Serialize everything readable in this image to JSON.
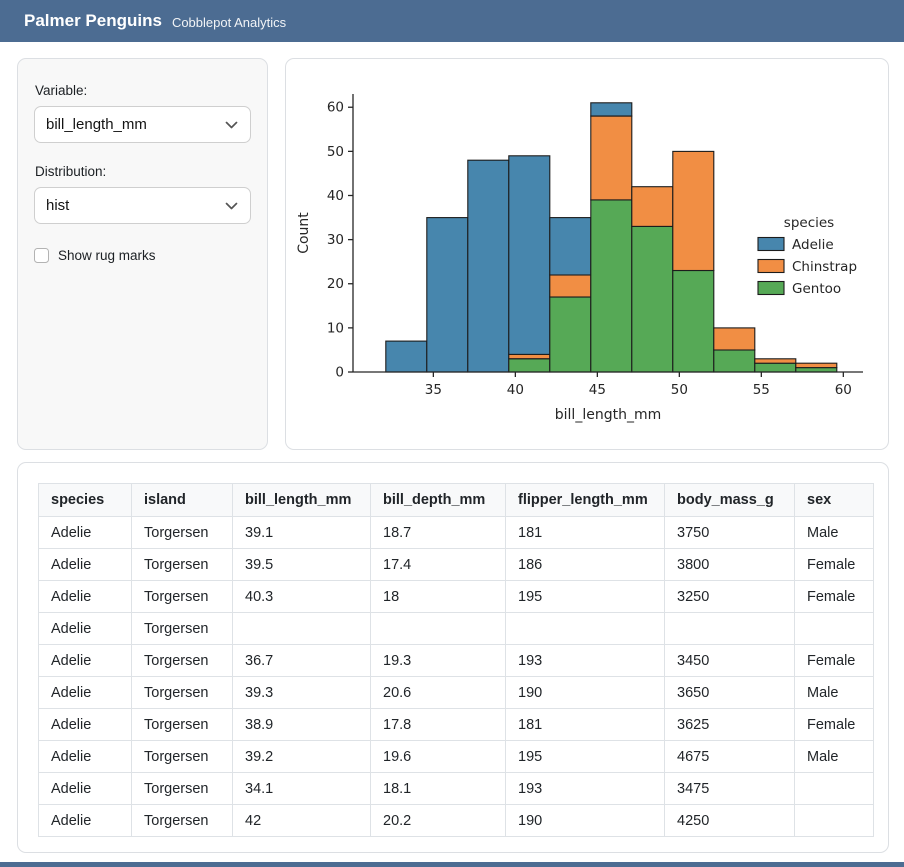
{
  "header": {
    "title": "Palmer Penguins",
    "subtitle": "Cobblepot Analytics"
  },
  "colors": {
    "navbar": "#4c6c92",
    "adelie": "#4786ad",
    "chinstrap": "#f18e44",
    "gentoo": "#56a956",
    "bar_edge": "#1c1c1c",
    "axis": "#262626",
    "table_header_bg": "#f8f9fa",
    "table_border": "#dee2e6",
    "sidebar_bg": "#f8f8f8"
  },
  "sidebar": {
    "variable_label": "Variable:",
    "variable_value": "bill_length_mm",
    "distribution_label": "Distribution:",
    "distribution_value": "hist",
    "rug_label": "Show rug marks",
    "rug_checked": false
  },
  "chart_data": {
    "type": "bar",
    "subtype": "stacked-histogram",
    "title": "",
    "xlabel": "bill_length_mm",
    "ylabel": "Count",
    "bin_edges": [
      32.1,
      34.6,
      37.1,
      39.6,
      42.1,
      44.6,
      47.1,
      49.6,
      52.1,
      54.6,
      57.1,
      59.6
    ],
    "series": [
      {
        "name": "Adelie",
        "color": "#4786ad",
        "values": [
          7,
          35,
          48,
          45,
          13,
          3,
          0,
          0,
          0,
          0,
          0
        ]
      },
      {
        "name": "Chinstrap",
        "color": "#f18e44",
        "values": [
          0,
          0,
          0,
          1,
          5,
          19,
          9,
          27,
          5,
          1,
          1
        ]
      },
      {
        "name": "Gentoo",
        "color": "#56a956",
        "values": [
          0,
          0,
          0,
          3,
          17,
          39,
          33,
          23,
          5,
          2,
          1
        ]
      }
    ],
    "stack_order_bottom_to_top": [
      "Gentoo",
      "Chinstrap",
      "Adelie"
    ],
    "legend": {
      "title": "species",
      "entries": [
        "Adelie",
        "Chinstrap",
        "Gentoo"
      ],
      "position": "right"
    },
    "x_ticks": [
      35,
      40,
      45,
      50,
      55,
      60
    ],
    "y_ticks": [
      0,
      10,
      20,
      30,
      40,
      50,
      60
    ],
    "xlim": [
      30.1,
      61.2
    ],
    "ylim": [
      0,
      63
    ],
    "grid": false
  },
  "table": {
    "columns": [
      "species",
      "island",
      "bill_length_mm",
      "bill_depth_mm",
      "flipper_length_mm",
      "body_mass_g",
      "sex"
    ],
    "rows": [
      [
        "Adelie",
        "Torgersen",
        "39.1",
        "18.7",
        "181",
        "3750",
        "Male"
      ],
      [
        "Adelie",
        "Torgersen",
        "39.5",
        "17.4",
        "186",
        "3800",
        "Female"
      ],
      [
        "Adelie",
        "Torgersen",
        "40.3",
        "18",
        "195",
        "3250",
        "Female"
      ],
      [
        "Adelie",
        "Torgersen",
        "",
        "",
        "",
        "",
        ""
      ],
      [
        "Adelie",
        "Torgersen",
        "36.7",
        "19.3",
        "193",
        "3450",
        "Female"
      ],
      [
        "Adelie",
        "Torgersen",
        "39.3",
        "20.6",
        "190",
        "3650",
        "Male"
      ],
      [
        "Adelie",
        "Torgersen",
        "38.9",
        "17.8",
        "181",
        "3625",
        "Female"
      ],
      [
        "Adelie",
        "Torgersen",
        "39.2",
        "19.6",
        "195",
        "4675",
        "Male"
      ],
      [
        "Adelie",
        "Torgersen",
        "34.1",
        "18.1",
        "193",
        "3475",
        ""
      ],
      [
        "Adelie",
        "Torgersen",
        "42",
        "20.2",
        "190",
        "4250",
        ""
      ]
    ]
  }
}
